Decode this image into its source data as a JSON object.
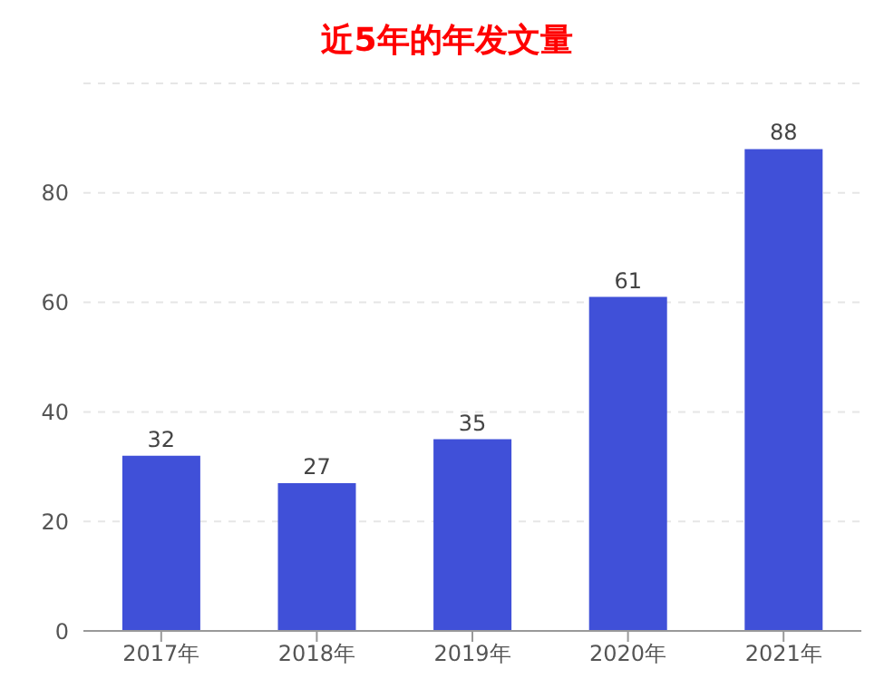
{
  "chart_data": {
    "type": "bar",
    "title": "近5年的年发文量",
    "categories": [
      "2017年",
      "2018年",
      "2019年",
      "2020年",
      "2021年"
    ],
    "values": [
      32,
      27,
      35,
      61,
      88
    ],
    "color": "#4050d8",
    "ylim": [
      0,
      100
    ],
    "yticks": [
      0,
      20,
      40,
      60,
      80,
      {
        "value": 100,
        "label": null
      }
    ],
    "grid": "y",
    "data_labels": true
  }
}
